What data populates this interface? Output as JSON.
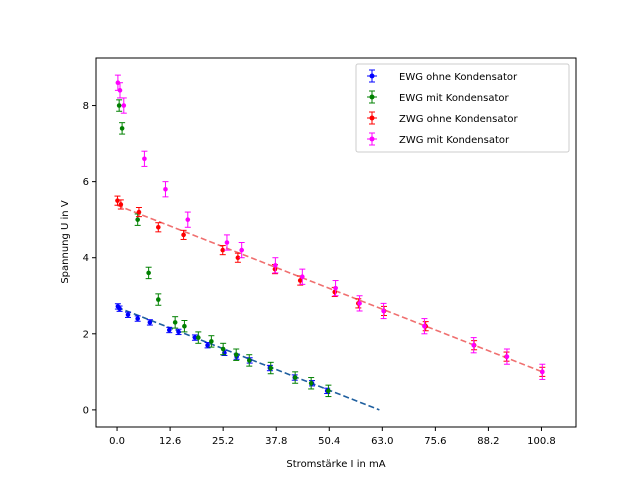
{
  "chart_data": {
    "type": "scatter",
    "title": "",
    "xlabel": "Stromstärke I in mA",
    "ylabel": "Spannung U in V",
    "xlim": [
      -5,
      109
    ],
    "ylim": [
      -0.45,
      9.25
    ],
    "xticks": [
      "0.0",
      "12.6",
      "25.2",
      "37.8",
      "50.4",
      "63.0",
      "75.6",
      "88.2",
      "100.8"
    ],
    "yticks": [
      "0",
      "2",
      "4",
      "6",
      "8"
    ],
    "grid": false,
    "legend_position": "top-right",
    "series": [
      {
        "name": "EWG ohne Kondensator",
        "color": "#0000ff",
        "yerr": 0.07,
        "points": [
          [
            0.2,
            2.72
          ],
          [
            0.6,
            2.66
          ],
          [
            2.6,
            2.5
          ],
          [
            4.9,
            2.4
          ],
          [
            7.8,
            2.3
          ],
          [
            12.4,
            2.1
          ],
          [
            14.6,
            2.05
          ],
          [
            18.5,
            1.9
          ],
          [
            21.5,
            1.7
          ],
          [
            25.5,
            1.5
          ],
          [
            28.4,
            1.4
          ],
          [
            31.5,
            1.3
          ],
          [
            36.3,
            1.1
          ],
          [
            42.2,
            0.85
          ],
          [
            46.3,
            0.7
          ],
          [
            49.9,
            0.5
          ]
        ]
      },
      {
        "name": "EWG mit Kondensator",
        "color": "#008000",
        "yerr": 0.15,
        "points": [
          [
            0.5,
            8.0
          ],
          [
            1.2,
            7.4
          ],
          [
            4.9,
            5.0
          ],
          [
            7.5,
            3.6
          ],
          [
            9.8,
            2.9
          ],
          [
            13.8,
            2.3
          ],
          [
            16.0,
            2.2
          ],
          [
            19.3,
            1.9
          ],
          [
            22.4,
            1.8
          ],
          [
            25.2,
            1.6
          ],
          [
            28.3,
            1.45
          ],
          [
            31.4,
            1.3
          ],
          [
            36.5,
            1.1
          ],
          [
            42.3,
            0.85
          ],
          [
            46.1,
            0.7
          ],
          [
            50.2,
            0.5
          ]
        ]
      },
      {
        "name": "ZWG ohne Kondensator",
        "color": "#ff0000",
        "yerr": 0.12,
        "points": [
          [
            0.1,
            5.5
          ],
          [
            0.9,
            5.4
          ],
          [
            5.2,
            5.2
          ],
          [
            9.8,
            4.8
          ],
          [
            15.8,
            4.6
          ],
          [
            25.1,
            4.2
          ],
          [
            28.7,
            4.0
          ],
          [
            37.5,
            3.7
          ],
          [
            43.5,
            3.4
          ],
          [
            51.7,
            3.1
          ],
          [
            57.3,
            2.8
          ],
          [
            63.4,
            2.6
          ],
          [
            73.3,
            2.2
          ],
          [
            84.8,
            1.7
          ],
          [
            92.5,
            1.4
          ],
          [
            101.0,
            1.0
          ]
        ]
      },
      {
        "name": "ZWG mit Kondensator",
        "color": "#ff00ff",
        "yerr": 0.2,
        "points": [
          [
            0.2,
            8.6
          ],
          [
            0.7,
            8.4
          ],
          [
            1.6,
            8.0
          ],
          [
            6.5,
            6.6
          ],
          [
            11.5,
            5.8
          ],
          [
            16.8,
            5.0
          ],
          [
            26.1,
            4.4
          ],
          [
            29.6,
            4.2
          ],
          [
            37.6,
            3.8
          ],
          [
            44.0,
            3.5
          ],
          [
            51.9,
            3.2
          ],
          [
            57.6,
            2.8
          ],
          [
            63.3,
            2.6
          ],
          [
            73.0,
            2.2
          ],
          [
            84.7,
            1.7
          ],
          [
            92.6,
            1.4
          ],
          [
            101.0,
            1.0
          ]
        ]
      }
    ],
    "fit_lines": [
      {
        "color": "#1f5f9f",
        "x": [
          0,
          62.3
        ],
        "y": [
          2.7,
          0.0
        ]
      },
      {
        "color": "#f07070",
        "x": [
          0,
          101.0
        ],
        "y": [
          5.38,
          1.0
        ]
      }
    ]
  }
}
